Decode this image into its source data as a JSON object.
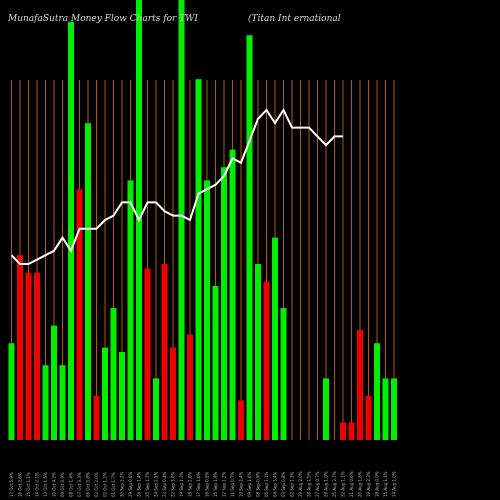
{
  "chart_data": {
    "type": "bar",
    "title": "MunafaSutra  Money Flow  Charts for TWI",
    "subtitle": "(Titan  Int                                         ernational",
    "ylim": [
      0,
      100
    ],
    "colors": {
      "up": "#00ee00",
      "down": "#ee0000",
      "grid": "#b35900",
      "line": "#ffffff",
      "background": "#000000"
    },
    "categories": [
      "Fri 17 Oct 2025",
      "Thu 16 Oct 2025",
      "Wed 15 Oct 2025",
      "Tue 14 Oct 2025",
      "Mon 13 Oct 2025",
      "Fri 10 Oct 2025",
      "Thu 09 Oct 2025",
      "Wed 08 Oct 2025",
      "Tue 07 Oct 2025",
      "Mon 06 Oct 2025",
      "Fri 03 Oct 2025",
      "Thu 02 Oct 2025",
      "Wed 01 Oct 2025",
      "Tue 30 Sep 2025",
      "Mon 29 Sep 2025",
      "Fri 26 Sep 2025",
      "Thu 25 Sep 2025",
      "Wed 24 Sep 2025",
      "Tue 23 Sep 2025",
      "Mon 22 Sep 2025",
      "Fri 19 Sep 2025",
      "Thu 18 Sep 2025",
      "Wed 17 Sep 2025",
      "Tue 16 Sep 2025",
      "Mon 15 Sep 2025",
      "Fri 12 Sep 2025",
      "Thu 11 Sep 2025",
      "Wed 10 Sep 2025",
      "Tue 09 Sep 2025",
      "Mon 08 Sep 2025",
      "Fri 05 Sep 2025",
      "Thu 04 Sep 2025",
      "Wed 03 Sep 2025",
      "Tue 02 Sep 2025",
      "Fri 29 Aug 2025",
      "Thu 28 Aug 2025",
      "Wed 27 Aug 2025",
      "Tue 26 Aug 2025",
      "Mon 25 Aug 2025",
      "Fri 22 Aug 2025",
      "Thu 21 Aug 2025",
      "Wed 20 Aug 2025",
      "Tue 19 Aug 2025",
      "Mon 18 Aug 2025",
      "Fri 15 Aug 2025",
      "Thu 14 Aug 2025"
    ],
    "x_labels": [
      "17 Oct 5.9%",
      "16 Oct 2.6%",
      "15 Oct 1.1%",
      "14 Oct 2.1%",
      "13 Oct 1.5%",
      "10 Oct 4.2%",
      "09 Oct 0.9%",
      "08 Oct 1.4%",
      "07 Oct 3.3%",
      "06 Oct 0.8%",
      "03 Oct 2.0%",
      "02 Oct 1.2%",
      "01 Oct 1.7%",
      "30 Sep 2.2%",
      "29 Sep 0.6%",
      "26 Sep 1.4%",
      "25 Sep 1.7%",
      "24 Sep 2.5%",
      "23 Sep 0.4%",
      "22 Sep 3.0%",
      "19 Sep 1.3%",
      "18 Sep 2.8%",
      "17 Sep 1.0%",
      "16 Sep 0.5%",
      "15 Sep 1.9%",
      "12 Sep 1.2%",
      "11 Sep 0.7%",
      "10 Sep 2.4%",
      "09 Sep 1.6%",
      "08 Sep 0.9%",
      "05 Sep 1.1%",
      "04 Sep 3.4%",
      "03 Sep 0.8%",
      "02 Sep 1.3%",
      "29 Aug 2.0%",
      "28 Aug 1.5%",
      "27 Aug 0.7%",
      "26 Aug 1.9%",
      "25 Aug 2.7%",
      "22 Aug 1.1%",
      "21 Aug 0.6%",
      "20 Aug 1.8%",
      "19 Aug 2.3%",
      "18 Aug 0.9%",
      "15 Aug 1.4%",
      "14 Aug 1.0%"
    ],
    "values": [
      22,
      42,
      38,
      38,
      17,
      26,
      17,
      95,
      57,
      72,
      10,
      21,
      30,
      20,
      59,
      100,
      39,
      14,
      40,
      21,
      100,
      24,
      82,
      59,
      35,
      62,
      66,
      9,
      92,
      40,
      36,
      46,
      30,
      0,
      0,
      0,
      0,
      14,
      0,
      4,
      4,
      25,
      10,
      22,
      14,
      14
    ],
    "directions": [
      "up",
      "down",
      "down",
      "down",
      "up",
      "up",
      "up",
      "up",
      "down",
      "up",
      "down",
      "up",
      "up",
      "up",
      "up",
      "up",
      "down",
      "up",
      "down",
      "down",
      "up",
      "down",
      "up",
      "up",
      "up",
      "up",
      "up",
      "down",
      "up",
      "up",
      "down",
      "up",
      "up",
      "up",
      "up",
      "up",
      "up",
      "up",
      "up",
      "down",
      "down",
      "down",
      "down",
      "up",
      "up",
      "up"
    ],
    "line": [
      42,
      40,
      40,
      41,
      42,
      43,
      46,
      43,
      48,
      48,
      48,
      50,
      51,
      54,
      54,
      50,
      54,
      54,
      52,
      51,
      51,
      50,
      56,
      57,
      58,
      60,
      64,
      63,
      68,
      73,
      75,
      72,
      75,
      71,
      71,
      71,
      69,
      67,
      69,
      69
    ]
  }
}
